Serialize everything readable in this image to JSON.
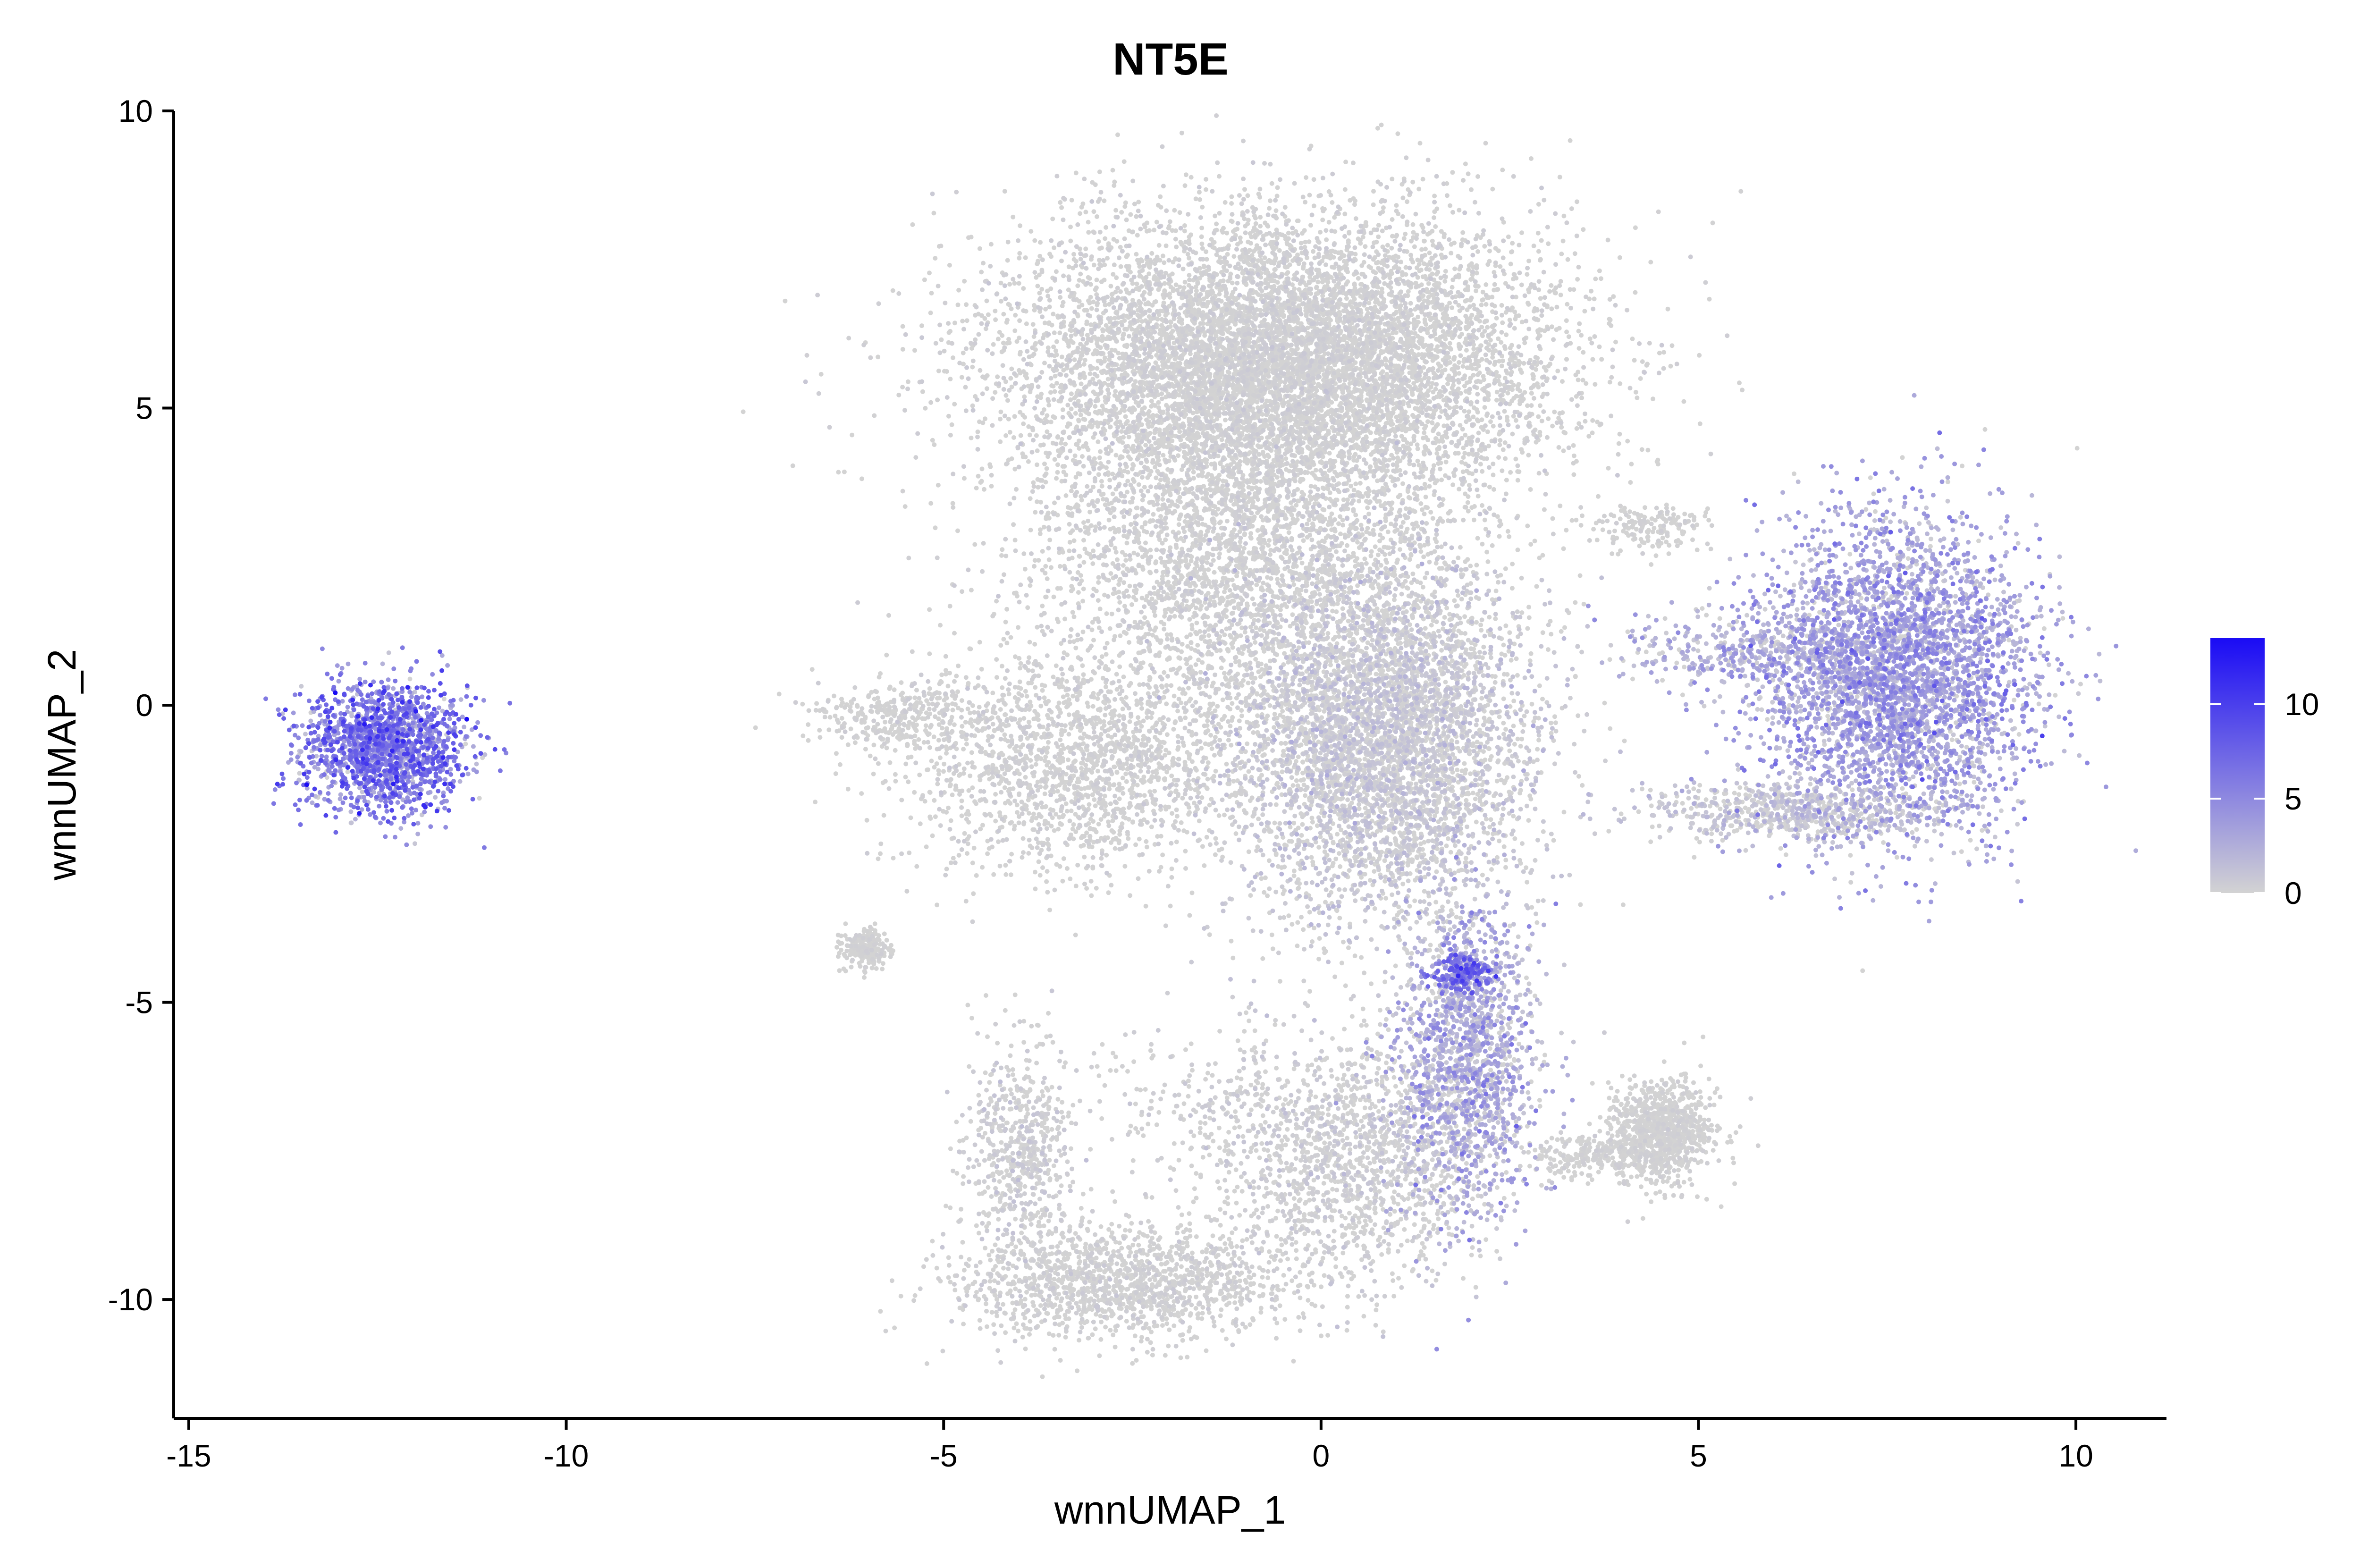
{
  "chart_data": {
    "type": "scatter",
    "title": "NT5E",
    "xlabel": "wnnUMAP_1",
    "ylabel": "wnnUMAP_2",
    "xlim": [
      -15.2,
      11.2
    ],
    "ylim": [
      -12,
      10
    ],
    "xticks": [
      -15,
      -10,
      -5,
      0,
      5,
      10
    ],
    "xtick_labels": [
      "-15",
      "-10",
      "-5",
      "0",
      "5",
      "10"
    ],
    "yticks": [
      -10,
      -5,
      0,
      5,
      10
    ],
    "ytick_labels": [
      "-10",
      "-5",
      "0",
      "5",
      "10"
    ],
    "grid": false,
    "legend": {
      "placement": "right",
      "type": "continuous colorbar",
      "min": 0,
      "max": 13.5,
      "ticks": [
        0,
        5,
        10
      ],
      "tick_labels": [
        "0",
        "5",
        "10"
      ],
      "low_color": "#d3d3d3",
      "high_color": "#1a0bf5"
    },
    "point_color_low": "#d3d3d3",
    "point_color_high": "#1a0bf5",
    "clusters": [
      {
        "cx": -12.4,
        "cy": -0.7,
        "sx": 0.55,
        "sy": 0.55,
        "n": 1700,
        "expr_mean": 5.5,
        "expr_sd": 2.5
      },
      {
        "cx": -0.5,
        "cy": 5.8,
        "sx": 1.8,
        "sy": 1.2,
        "n": 9000,
        "expr_mean": 0.0,
        "expr_sd": 0.3
      },
      {
        "cx": -1.2,
        "cy": 2.5,
        "sx": 1.4,
        "sy": 1.4,
        "n": 3000,
        "expr_mean": 0.0,
        "expr_sd": 0.3
      },
      {
        "cx": 0.8,
        "cy": -0.5,
        "sx": 1.0,
        "sy": 1.6,
        "n": 5000,
        "expr_mean": 0.3,
        "expr_sd": 0.8
      },
      {
        "cx": -3.2,
        "cy": -1.0,
        "sx": 1.1,
        "sy": 0.9,
        "n": 1800,
        "expr_mean": 0.0,
        "expr_sd": 0.3
      },
      {
        "cx": -5.5,
        "cy": -0.2,
        "sx": 0.6,
        "sy": 0.3,
        "n": 350,
        "expr_mean": 0.0,
        "expr_sd": 0.2
      },
      {
        "cx": -6.05,
        "cy": -4.1,
        "sx": 0.15,
        "sy": 0.15,
        "n": 220,
        "expr_mean": 0.0,
        "expr_sd": 0.2
      },
      {
        "cx": 7.6,
        "cy": 0.5,
        "sx": 0.9,
        "sy": 1.3,
        "n": 3800,
        "expr_mean": 3.0,
        "expr_sd": 1.8
      },
      {
        "cx": 5.7,
        "cy": 0.9,
        "sx": 0.9,
        "sy": 0.35,
        "n": 450,
        "expr_mean": 2.0,
        "expr_sd": 1.5
      },
      {
        "cx": 6.3,
        "cy": -1.8,
        "sx": 1.0,
        "sy": 0.25,
        "n": 700,
        "expr_mean": 0.5,
        "expr_sd": 1.0
      },
      {
        "cx": 4.3,
        "cy": 3.0,
        "sx": 0.4,
        "sy": 0.2,
        "n": 160,
        "expr_mean": 0.0,
        "expr_sd": 0.2
      },
      {
        "cx": 1.9,
        "cy": -6.0,
        "sx": 0.45,
        "sy": 1.3,
        "n": 1600,
        "expr_mean": 2.0,
        "expr_sd": 1.8
      },
      {
        "cx": 1.9,
        "cy": -4.5,
        "sx": 0.2,
        "sy": 0.15,
        "n": 220,
        "expr_mean": 6.0,
        "expr_sd": 2.0
      },
      {
        "cx": 4.5,
        "cy": -7.2,
        "sx": 0.35,
        "sy": 0.45,
        "n": 900,
        "expr_mean": 0.0,
        "expr_sd": 0.2
      },
      {
        "cx": 3.6,
        "cy": -7.6,
        "sx": 0.45,
        "sy": 0.2,
        "n": 220,
        "expr_mean": 0.0,
        "expr_sd": 0.2
      },
      {
        "cx": -2.6,
        "cy": -9.7,
        "sx": 1.1,
        "sy": 0.5,
        "n": 1500,
        "expr_mean": 0.0,
        "expr_sd": 0.3
      },
      {
        "cx": -4.0,
        "cy": -7.5,
        "sx": 0.35,
        "sy": 0.9,
        "n": 600,
        "expr_mean": 0.1,
        "expr_sd": 0.5
      },
      {
        "cx": 0.4,
        "cy": -7.8,
        "sx": 0.8,
        "sy": 1.0,
        "n": 1200,
        "expr_mean": 0.1,
        "expr_sd": 0.5
      },
      {
        "cx": -1.0,
        "cy": -6.7,
        "sx": 1.2,
        "sy": 0.7,
        "n": 400,
        "expr_mean": 0.1,
        "expr_sd": 0.4
      }
    ]
  }
}
